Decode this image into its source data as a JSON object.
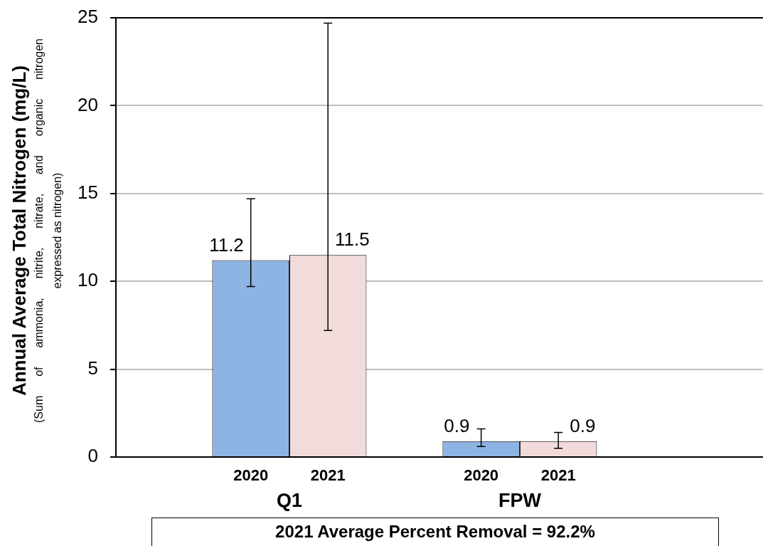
{
  "chart_data": {
    "type": "bar",
    "ylabel": "Annual Average Total Nitrogen (mg/L)\n(Sum of ammonia, nitrite, nitrate, and organic nitrogen\nexpressed as nitrogen)",
    "categories": [
      "Q1",
      "FPW"
    ],
    "series": [
      {
        "name": "2020",
        "color": "#8db4e2",
        "values": [
          11.2,
          0.9
        ],
        "errors": [
          [
            9.7,
            14.7
          ],
          [
            0.6,
            1.6
          ]
        ]
      },
      {
        "name": "2021",
        "color": "#f2dcdb",
        "values": [
          11.5,
          0.9
        ],
        "errors": [
          [
            7.2,
            24.7
          ],
          [
            0.5,
            1.4
          ]
        ]
      }
    ],
    "ylim": [
      0,
      25
    ],
    "yticks": [
      0,
      5,
      10,
      15,
      20,
      25
    ],
    "grid": "y",
    "data_labels": true,
    "annotations": [
      "2021 Average Percent Removal = 92.2%"
    ]
  }
}
